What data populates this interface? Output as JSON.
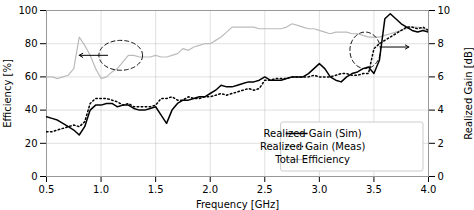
{
  "chart_data": {
    "type": "line",
    "xlabel": "Frequency [GHz]",
    "ylabel": "Efficiency [%]",
    "y2label": "Realized Gain [dB]",
    "x": [
      0.5,
      0.55,
      0.6,
      0.65,
      0.7,
      0.75,
      0.8,
      0.85,
      0.9,
      0.95,
      1.0,
      1.05,
      1.1,
      1.15,
      1.2,
      1.25,
      1.3,
      1.35,
      1.4,
      1.45,
      1.5,
      1.55,
      1.6,
      1.65,
      1.7,
      1.75,
      1.8,
      1.85,
      1.9,
      1.95,
      2.0,
      2.05,
      2.1,
      2.15,
      2.2,
      2.25,
      2.3,
      2.35,
      2.4,
      2.45,
      2.5,
      2.55,
      2.6,
      2.65,
      2.7,
      2.75,
      2.8,
      2.85,
      2.9,
      2.95,
      3.0,
      3.05,
      3.1,
      3.15,
      3.2,
      3.25,
      3.3,
      3.35,
      3.4,
      3.45,
      3.5,
      3.55,
      3.6,
      3.65,
      3.7,
      3.75,
      3.8,
      3.85,
      3.9,
      3.95,
      4.0
    ],
    "xlim": [
      0.5,
      4.0
    ],
    "xticks": [
      0.5,
      {
        "value": 1.0,
        "label": "1.0"
      },
      1.5,
      {
        "value": 2.0,
        "label": "2.0"
      },
      2.5,
      {
        "value": 3.0,
        "label": "3.0"
      },
      3.5,
      {
        "value": 4.0,
        "label": "4.0"
      }
    ],
    "ylim": [
      0,
      100
    ],
    "yticks": [
      0,
      20,
      40,
      60,
      80,
      100
    ],
    "y2lim": [
      0,
      10
    ],
    "y2ticks": [
      0,
      2,
      4,
      6,
      8,
      10
    ],
    "grid": true,
    "legend": "lower right",
    "series": [
      {
        "name": "Realized Gain (Sim)",
        "color": "#000000",
        "line_style": "solid",
        "axis": "y2",
        "values": [
          3.6,
          3.5,
          3.4,
          3.2,
          3.0,
          2.8,
          2.5,
          3.0,
          4.0,
          4.3,
          4.3,
          4.4,
          4.4,
          4.2,
          4.3,
          4.3,
          4.1,
          4.0,
          4.0,
          4.1,
          4.2,
          3.7,
          3.2,
          4.0,
          4.4,
          4.6,
          4.6,
          4.7,
          4.8,
          4.8,
          5.0,
          5.2,
          5.5,
          5.4,
          5.4,
          5.5,
          5.6,
          5.7,
          5.7,
          5.8,
          6.0,
          5.8,
          5.8,
          5.8,
          5.9,
          6.0,
          6.0,
          6.0,
          6.2,
          6.5,
          6.8,
          6.5,
          6.0,
          5.8,
          5.7,
          6.0,
          6.2,
          6.3,
          6.5,
          6.6,
          6.2,
          7.0,
          9.5,
          9.8,
          9.5,
          9.2,
          9.0,
          8.8,
          8.7,
          8.8,
          8.7
        ]
      },
      {
        "name": "Realized Gain (Meas)",
        "color": "#000000",
        "line_style": "dotted",
        "axis": "y2",
        "values": [
          2.7,
          2.7,
          2.8,
          2.9,
          3.0,
          3.1,
          3.0,
          3.3,
          4.4,
          4.7,
          4.7,
          4.7,
          4.6,
          4.5,
          4.3,
          4.4,
          4.2,
          4.2,
          4.2,
          4.2,
          4.3,
          4.7,
          4.7,
          4.8,
          4.6,
          4.6,
          4.8,
          4.7,
          4.7,
          4.8,
          4.8,
          4.9,
          5.0,
          4.9,
          5.0,
          5.1,
          5.2,
          5.3,
          5.2,
          5.3,
          5.8,
          5.8,
          5.9,
          5.9,
          5.9,
          6.0,
          6.0,
          6.0,
          6.0,
          6.1,
          6.0,
          6.0,
          6.0,
          6.1,
          6.2,
          6.2,
          6.1,
          6.1,
          6.2,
          6.2,
          7.7,
          8.0,
          8.2,
          8.4,
          8.6,
          8.8,
          9.0,
          9.0,
          8.9,
          9.0,
          8.8
        ]
      },
      {
        "name": "Total Efficiency",
        "color": "#bbbbbb",
        "line_style": "solid",
        "values": [
          60,
          60,
          59,
          60,
          61,
          65,
          84,
          79,
          73,
          65,
          59,
          60,
          63,
          65,
          69,
          73,
          73,
          72,
          72,
          72,
          73,
          72,
          72,
          73,
          74,
          77,
          76,
          78,
          79,
          80,
          80,
          82,
          84,
          87,
          90,
          90,
          90,
          90,
          90,
          89,
          89,
          89,
          89,
          89,
          90,
          92,
          91,
          90,
          89,
          89,
          88,
          87,
          86,
          87,
          87,
          87,
          86,
          86,
          85,
          84,
          84,
          84,
          85,
          86,
          87,
          88,
          89,
          90,
          90,
          89,
          88
        ]
      }
    ],
    "ellipses": [
      {
        "cx": 1.18,
        "cy": 7.3,
        "width": 0.4,
        "height": 1.8,
        "axis": "y2"
      },
      {
        "cx": 3.42,
        "cy": 7.6,
        "width": 0.28,
        "height": 2.2,
        "axis": "y2"
      }
    ],
    "arrows": [
      {
        "x1": 1.06,
        "y1": 7.3,
        "x2": 0.8,
        "y2": 7.3,
        "axis": "y2"
      },
      {
        "x1": 3.56,
        "y1": 7.8,
        "x2": 3.82,
        "y2": 7.8,
        "axis": "y2"
      }
    ]
  }
}
